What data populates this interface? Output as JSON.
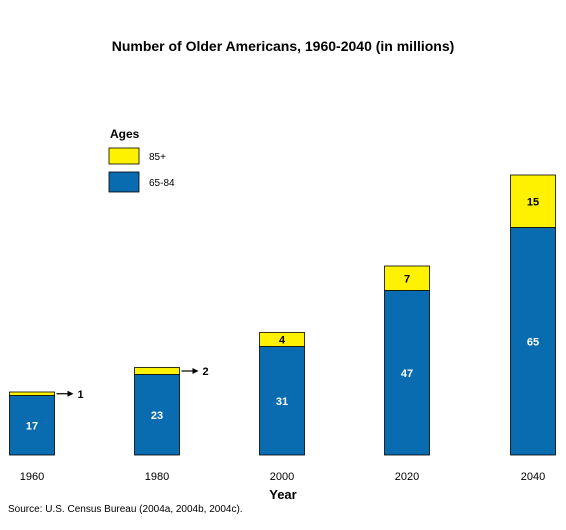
{
  "chart_data": {
    "type": "bar",
    "stacked": true,
    "title": "Number of Older Americans, 1960-2040 (in millions)",
    "xlabel": "Year",
    "ylabel": "",
    "categories": [
      "1960",
      "1980",
      "2000",
      "2020",
      "2040"
    ],
    "series": [
      {
        "name": "65-84",
        "values": [
          17,
          23,
          31,
          47,
          65
        ],
        "color": "#0a6cb0"
      },
      {
        "name": "85+",
        "values": [
          1,
          2,
          4,
          7,
          15
        ],
        "color": "#fff200"
      }
    ],
    "value_labels": {
      "65-84": [
        "17",
        "23",
        "31",
        "47",
        "65"
      ],
      "85+": [
        "1",
        "2",
        "4",
        "7",
        "15"
      ]
    },
    "legend": {
      "title": "Ages",
      "position": "top-left"
    },
    "grid": false,
    "source": "Source: U.S. Census Bureau (2004a, 2004b, 2004c)."
  }
}
